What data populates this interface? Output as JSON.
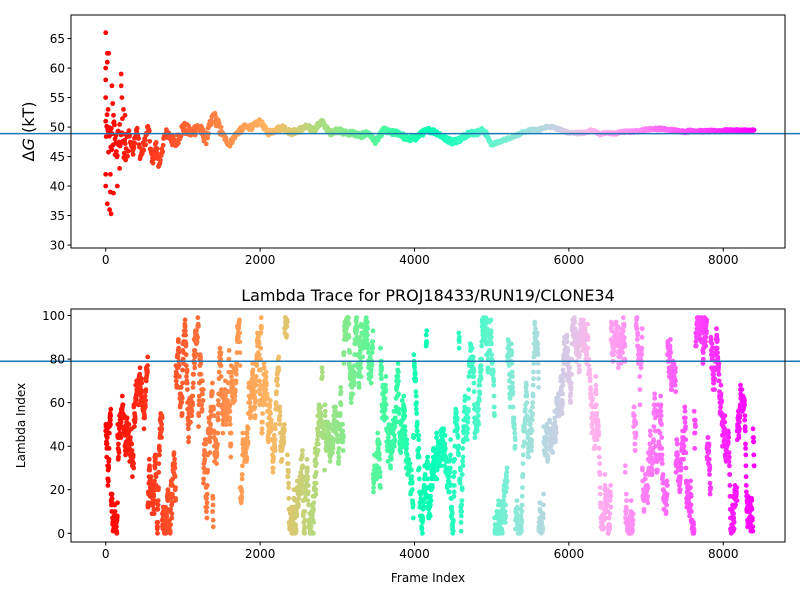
{
  "chart_data": [
    {
      "type": "scatter",
      "title": "",
      "xlabel": "",
      "ylabel": "ΔG (kT)",
      "ylabel_parts": {
        "delta": "Δ",
        "var": "G",
        "unit": " (kT)"
      },
      "xlim": [
        -450,
        8800
      ],
      "ylim": [
        29.5,
        69
      ],
      "xticks": [
        0,
        2000,
        4000,
        6000,
        8000
      ],
      "xtick_labels": [
        "0",
        "2000",
        "4000",
        "6000",
        "8000"
      ],
      "yticks": [
        30,
        35,
        40,
        45,
        50,
        55,
        60,
        65
      ],
      "ytick_labels": [
        "30",
        "35",
        "40",
        "45",
        "50",
        "55",
        "60",
        "65"
      ],
      "hline": 48.9,
      "hline_color": "#1f77b4",
      "colormap": "rainbow (red at frame 0 → purple at last frame)",
      "frame_range": [
        0,
        8400
      ],
      "trace_keypoints": [
        [
          0,
          50
        ],
        [
          50,
          47
        ],
        [
          100,
          49
        ],
        [
          150,
          46
        ],
        [
          200,
          50
        ],
        [
          250,
          45
        ],
        [
          300,
          49
        ],
        [
          350,
          46
        ],
        [
          400,
          50
        ],
        [
          450,
          45
        ],
        [
          500,
          47
        ],
        [
          550,
          50
        ],
        [
          600,
          44
        ],
        [
          650,
          47
        ],
        [
          700,
          43
        ],
        [
          750,
          48
        ],
        [
          800,
          49
        ],
        [
          900,
          47
        ],
        [
          1000,
          50
        ],
        [
          1100,
          49
        ],
        [
          1200,
          50
        ],
        [
          1300,
          48
        ],
        [
          1400,
          52
        ],
        [
          1500,
          49
        ],
        [
          1600,
          47
        ],
        [
          1700,
          49
        ],
        [
          1800,
          50
        ],
        [
          1900,
          50
        ],
        [
          2000,
          51
        ],
        [
          2100,
          49
        ],
        [
          2200,
          49.5
        ],
        [
          2300,
          50
        ],
        [
          2400,
          49
        ],
        [
          2500,
          49.5
        ],
        [
          2600,
          50
        ],
        [
          2700,
          49.5
        ],
        [
          2800,
          51
        ],
        [
          2900,
          49
        ],
        [
          3000,
          49.5
        ],
        [
          3100,
          49
        ],
        [
          3200,
          49
        ],
        [
          3300,
          48.5
        ],
        [
          3400,
          49
        ],
        [
          3500,
          47.5
        ],
        [
          3600,
          49.5
        ],
        [
          3700,
          49
        ],
        [
          3800,
          49
        ],
        [
          3900,
          48
        ],
        [
          4000,
          48
        ],
        [
          4100,
          49
        ],
        [
          4200,
          49.5
        ],
        [
          4300,
          49
        ],
        [
          4400,
          48
        ],
        [
          4500,
          47.5
        ],
        [
          4600,
          48
        ],
        [
          4700,
          49
        ],
        [
          4800,
          49
        ],
        [
          4900,
          49.5
        ],
        [
          5000,
          47
        ],
        [
          5100,
          47.5
        ],
        [
          5200,
          48
        ],
        [
          5300,
          48.5
        ],
        [
          5400,
          49
        ],
        [
          5500,
          49.5
        ],
        [
          5600,
          49.5
        ],
        [
          5700,
          50
        ],
        [
          5800,
          50
        ],
        [
          5900,
          49.5
        ],
        [
          6000,
          49
        ],
        [
          6100,
          49
        ],
        [
          6200,
          49
        ],
        [
          6300,
          49.5
        ],
        [
          6400,
          48.8
        ],
        [
          6500,
          49
        ],
        [
          6600,
          48.9
        ],
        [
          6700,
          49.2
        ],
        [
          6800,
          49.2
        ],
        [
          6900,
          49.3
        ],
        [
          7000,
          49.6
        ],
        [
          7100,
          49.7
        ],
        [
          7200,
          49.7
        ],
        [
          7300,
          49.5
        ],
        [
          7400,
          49.4
        ],
        [
          7500,
          49.2
        ],
        [
          7600,
          49.4
        ],
        [
          7700,
          49.3
        ],
        [
          7800,
          49.3
        ],
        [
          7900,
          49.3
        ],
        [
          8000,
          49.4
        ],
        [
          8200,
          49.4
        ],
        [
          8400,
          49.4
        ]
      ],
      "early_outliers": [
        [
          0,
          66
        ],
        [
          0,
          60
        ],
        [
          0,
          58
        ],
        [
          0,
          55
        ],
        [
          0,
          40
        ],
        [
          0,
          42
        ],
        [
          20,
          62.5
        ],
        [
          20,
          61
        ],
        [
          20,
          37
        ],
        [
          30,
          53
        ],
        [
          40,
          62.5
        ],
        [
          50,
          36
        ],
        [
          60,
          42
        ],
        [
          60,
          39
        ],
        [
          70,
          35.3
        ],
        [
          80,
          57
        ],
        [
          90,
          54
        ],
        [
          100,
          38.8
        ],
        [
          100,
          52
        ],
        [
          120,
          48
        ],
        [
          150,
          40
        ],
        [
          180,
          43
        ],
        [
          200,
          59
        ],
        [
          200,
          57
        ],
        [
          210,
          55
        ],
        [
          230,
          53
        ],
        [
          250,
          52
        ]
      ]
    },
    {
      "type": "scatter",
      "title": "Lambda Trace for PROJ18433/RUN19/CLONE34",
      "xlabel": "Frame Index",
      "ylabel": "Lambda Index",
      "xlim": [
        -450,
        8800
      ],
      "ylim": [
        -4,
        103
      ],
      "xticks": [
        0,
        2000,
        4000,
        6000,
        8000
      ],
      "xtick_labels": [
        "0",
        "2000",
        "4000",
        "6000",
        "8000"
      ],
      "yticks": [
        0,
        20,
        40,
        60,
        80,
        100
      ],
      "ytick_labels": [
        "0",
        "20",
        "40",
        "60",
        "80",
        "100"
      ],
      "hline": 79,
      "hline_color": "#1f77b4",
      "colormap": "rainbow (red at frame 0 → purple at last frame)",
      "frame_range": [
        0,
        8400
      ],
      "lambda_range": [
        0,
        99
      ],
      "description": "Random-walk lambda index per frame, spread uniformly between 0 and 99"
    }
  ]
}
